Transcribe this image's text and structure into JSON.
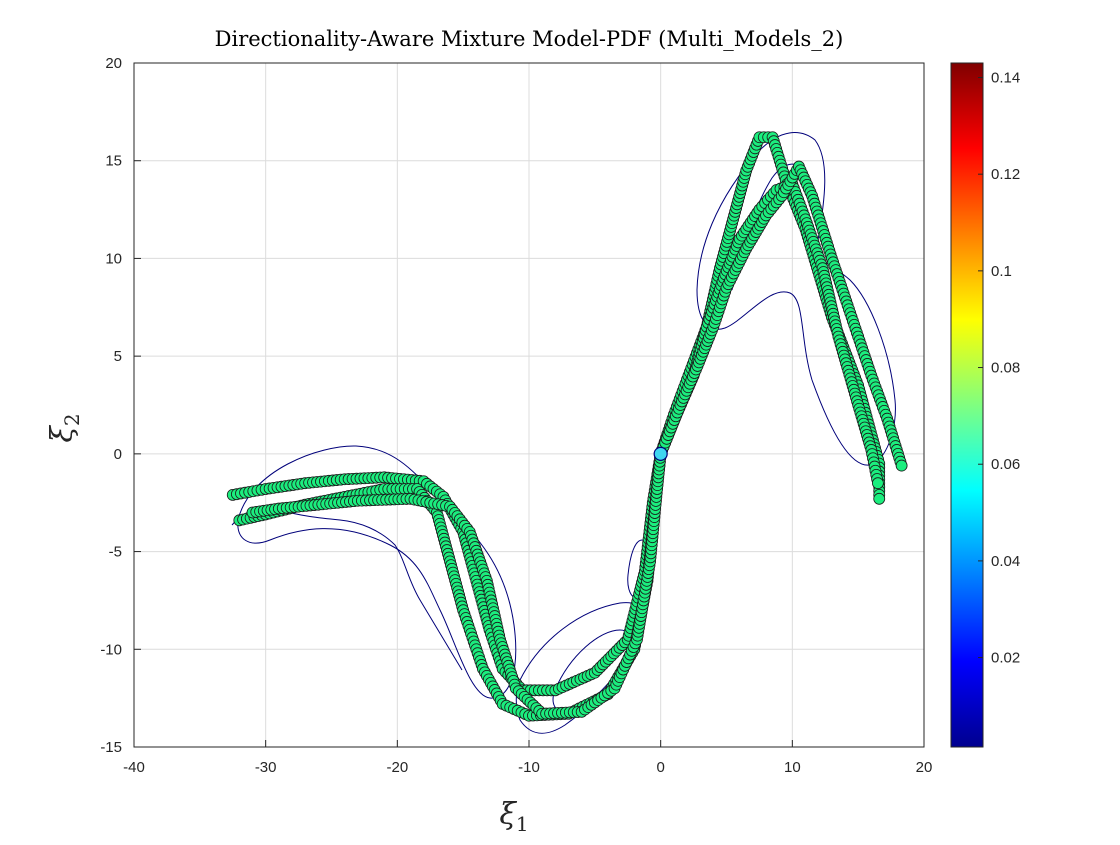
{
  "chart_data": {
    "type": "scatter",
    "title": "Directionality-Aware Mixture Model-PDF (Multi_Models_2)",
    "xlabel": {
      "base": "ξ",
      "sub": "1"
    },
    "ylabel": {
      "base": "ξ",
      "sub": "2"
    },
    "xlim": [
      -40,
      20
    ],
    "ylim": [
      -15,
      20
    ],
    "xticks": [
      -40,
      -30,
      -20,
      -10,
      0,
      10,
      20
    ],
    "yticks": [
      -15,
      -10,
      -5,
      0,
      5,
      10,
      15,
      20
    ],
    "grid": true,
    "marker_color": "#1bee7e",
    "marker_edge": "#1a1a1a",
    "contour_color": "#00007a",
    "colorbar": {
      "colormap": "jet",
      "range": [
        0.0015,
        0.143
      ],
      "ticks": [
        0.02,
        0.04,
        0.06,
        0.08,
        0.1,
        0.12,
        0.14
      ],
      "tick_labels": [
        "0.02",
        "0.04",
        "0.06",
        "0.08",
        "0.1",
        "0.12",
        "0.14"
      ]
    },
    "series": [
      {
        "points": [
          [
            -32.5,
            -2.1
          ],
          [
            -30,
            -1.8
          ],
          [
            -27,
            -1.5
          ],
          [
            -24,
            -1.3
          ],
          [
            -21,
            -1.2
          ],
          [
            -18,
            -1.4
          ],
          [
            -16.5,
            -2.2
          ],
          [
            -15,
            -4
          ],
          [
            -14,
            -6.5
          ],
          [
            -13,
            -9
          ],
          [
            -12,
            -11
          ],
          [
            -10.5,
            -12.1
          ],
          [
            -8,
            -12.1
          ],
          [
            -5,
            -11.2
          ],
          [
            -2.5,
            -9.5
          ],
          [
            -1.2,
            -6
          ],
          [
            -0.6,
            -2.5
          ],
          [
            0,
            0
          ],
          [
            1,
            2
          ],
          [
            2,
            3.8
          ],
          [
            3.5,
            6.5
          ],
          [
            4.5,
            9.5
          ],
          [
            5.5,
            12
          ],
          [
            6.5,
            14.5
          ],
          [
            7.5,
            16.2
          ],
          [
            8.5,
            16.2
          ],
          [
            9.5,
            14
          ],
          [
            11,
            11.5
          ],
          [
            13,
            7
          ],
          [
            15,
            3.5
          ],
          [
            16.6,
            -0.5
          ],
          [
            16.6,
            -2.3
          ]
        ]
      },
      {
        "points": [
          [
            -32,
            -3.4
          ],
          [
            -30,
            -3.1
          ],
          [
            -27,
            -2.6
          ],
          [
            -24,
            -2.2
          ],
          [
            -21,
            -1.8
          ],
          [
            -18.5,
            -1.8
          ],
          [
            -17,
            -3
          ],
          [
            -16,
            -5.5
          ],
          [
            -15,
            -8
          ],
          [
            -13.5,
            -11
          ],
          [
            -12,
            -12.8
          ],
          [
            -10,
            -13.4
          ],
          [
            -7,
            -13.3
          ],
          [
            -4,
            -12.3
          ],
          [
            -2,
            -10
          ],
          [
            -1,
            -6.5
          ],
          [
            -0.4,
            -2.5
          ],
          [
            0,
            0
          ],
          [
            1.2,
            2
          ],
          [
            2.5,
            4
          ],
          [
            3.5,
            6.5
          ],
          [
            4.8,
            9
          ],
          [
            6,
            11
          ],
          [
            7.5,
            12.5
          ],
          [
            8.8,
            13.5
          ],
          [
            10,
            13.8
          ],
          [
            11,
            12
          ],
          [
            12.3,
            9.5
          ],
          [
            13.5,
            6
          ],
          [
            15,
            2.5
          ],
          [
            16,
            0.2
          ],
          [
            16.5,
            -1.5
          ]
        ]
      },
      {
        "points": [
          [
            -31,
            -3
          ],
          [
            -29,
            -2.8
          ],
          [
            -26,
            -2.6
          ],
          [
            -23,
            -2.4
          ],
          [
            -19,
            -2.3
          ],
          [
            -16,
            -2.7
          ],
          [
            -14.5,
            -4
          ],
          [
            -13.2,
            -6.5
          ],
          [
            -12.2,
            -9.5
          ],
          [
            -11,
            -12
          ],
          [
            -9,
            -13.3
          ],
          [
            -6,
            -13.2
          ],
          [
            -3.5,
            -12
          ],
          [
            -1.8,
            -9.5
          ],
          [
            -0.8,
            -5.5
          ],
          [
            -0.3,
            -2
          ],
          [
            0,
            0
          ],
          [
            1.5,
            2.5
          ],
          [
            2.8,
            4.5
          ],
          [
            4,
            6.5
          ],
          [
            5,
            8.5
          ],
          [
            6.5,
            10.5
          ],
          [
            8,
            12.2
          ],
          [
            9.2,
            13.2
          ],
          [
            10.5,
            14.7
          ],
          [
            11.5,
            13.2
          ],
          [
            13,
            10
          ],
          [
            14.5,
            7
          ],
          [
            16,
            4
          ],
          [
            17.2,
            1.8
          ],
          [
            18.3,
            -0.6
          ]
        ]
      }
    ]
  }
}
